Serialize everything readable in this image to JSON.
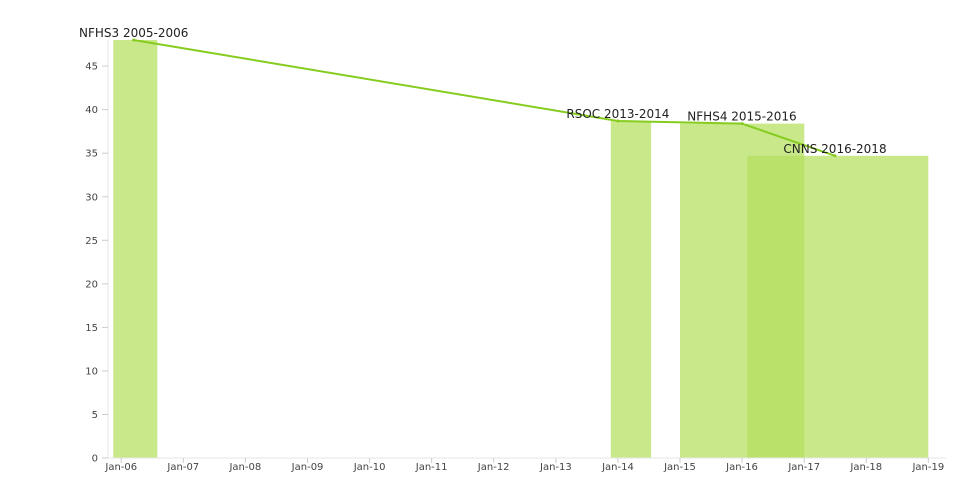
{
  "chart_data": {
    "type": "bar",
    "title": "",
    "xlabel": "",
    "ylabel": "",
    "x_axis": "date",
    "xlim": [
      "2005-10-15",
      "2019-04-15"
    ],
    "ylim": [
      0,
      48
    ],
    "y_ticks": [
      0,
      5,
      10,
      15,
      20,
      25,
      30,
      35,
      40,
      45
    ],
    "x_ticks": [
      {
        "date": "2006-01-01",
        "label": "Jan-06"
      },
      {
        "date": "2007-01-01",
        "label": "Jan-07"
      },
      {
        "date": "2008-01-01",
        "label": "Jan-08"
      },
      {
        "date": "2009-01-01",
        "label": "Jan-09"
      },
      {
        "date": "2010-01-01",
        "label": "Jan-10"
      },
      {
        "date": "2011-01-01",
        "label": "Jan-11"
      },
      {
        "date": "2012-01-01",
        "label": "Jan-12"
      },
      {
        "date": "2013-01-01",
        "label": "Jan-13"
      },
      {
        "date": "2014-01-01",
        "label": "Jan-14"
      },
      {
        "date": "2015-01-01",
        "label": "Jan-15"
      },
      {
        "date": "2016-01-01",
        "label": "Jan-16"
      },
      {
        "date": "2017-01-01",
        "label": "Jan-17"
      },
      {
        "date": "2018-01-01",
        "label": "Jan-18"
      },
      {
        "date": "2019-01-01",
        "label": "Jan-19"
      }
    ],
    "grid": false,
    "bar_color": "#b5e061",
    "line_color": "#86cc1f",
    "surveys": [
      {
        "label": "NFHS3 2005-2006",
        "start": "2005-11-15",
        "end": "2006-08-01",
        "value": 48.0,
        "line_date": "2006-03-15"
      },
      {
        "label": "RSOC 2013-2014",
        "start": "2013-11-20",
        "end": "2014-07-15",
        "value": 38.7,
        "line_date": "2014-01-01"
      },
      {
        "label": "NFHS4 2015-2016",
        "start": "2015-01-01",
        "end": "2017-01-01",
        "value": 38.4,
        "line_date": "2016-01-01"
      },
      {
        "label": "CNNS 2016-2018",
        "start": "2016-02-01",
        "end": "2019-01-01",
        "value": 34.7,
        "line_date": "2017-07-01"
      }
    ]
  }
}
